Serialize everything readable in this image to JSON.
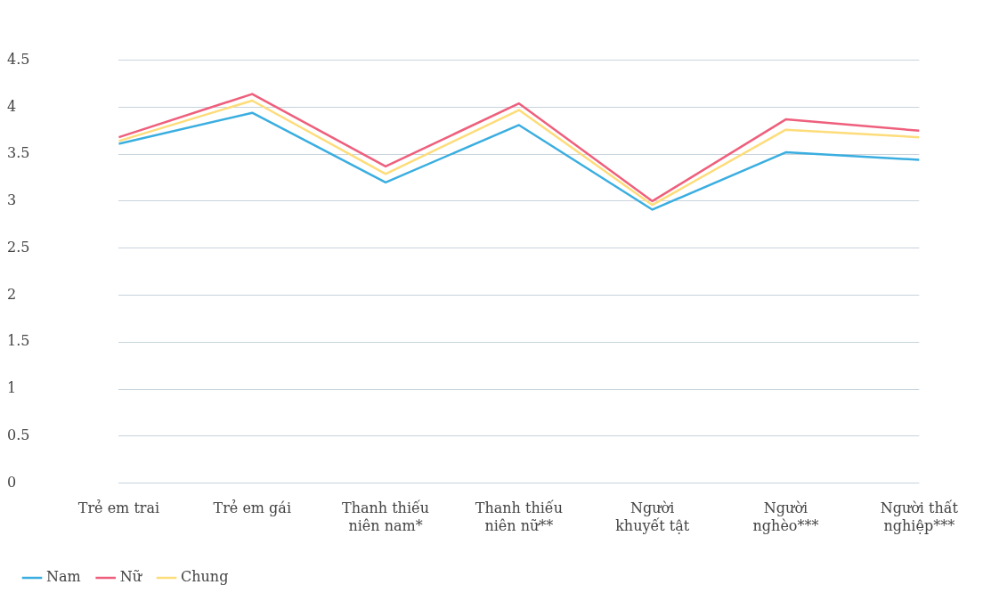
{
  "chart_data": {
    "type": "line",
    "categories": [
      "Trẻ em trai",
      "Trẻ em gái",
      "Thanh thiếu niên nam*",
      "Thanh thiếu niên nữ**",
      "Người khuyết tật",
      "Người nghèo***",
      "Người thất nghiệp***"
    ],
    "series": [
      {
        "name": "Nam",
        "color": "#3aaee0",
        "values": [
          3.61,
          3.94,
          3.2,
          3.81,
          2.91,
          3.52,
          3.44
        ]
      },
      {
        "name": "Nữ",
        "color": "#ee5f7c",
        "values": [
          3.68,
          4.14,
          3.37,
          4.04,
          3.0,
          3.87,
          3.75
        ]
      },
      {
        "name": "Chung",
        "color": "#fddc7a",
        "values": [
          3.64,
          4.07,
          3.29,
          3.97,
          2.96,
          3.76,
          3.68
        ]
      }
    ],
    "ylim": [
      0,
      4.5
    ],
    "yticks": [
      0,
      0.5,
      1,
      1.5,
      2,
      2.5,
      3,
      3.5,
      4,
      4.5
    ],
    "grid": "y",
    "legend": "bottom left",
    "marker": "none",
    "line_style": "solid"
  }
}
